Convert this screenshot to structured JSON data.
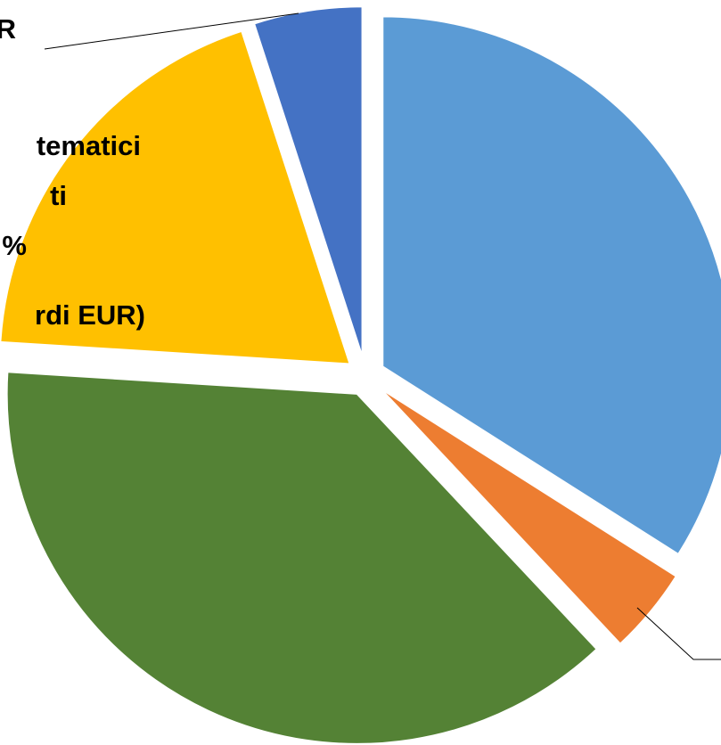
{
  "chart_data": {
    "type": "pie",
    "values": [
      34,
      4,
      38,
      19,
      5
    ],
    "colors": [
      "#5b9bd5",
      "#ed7d31",
      "#548235",
      "#ffc000",
      "#4472c4"
    ],
    "data_labels": [
      null,
      null,
      null,
      [
        "tematici",
        "ti",
        "%",
        "rdi EUR)"
      ],
      [
        "R"
      ]
    ]
  }
}
